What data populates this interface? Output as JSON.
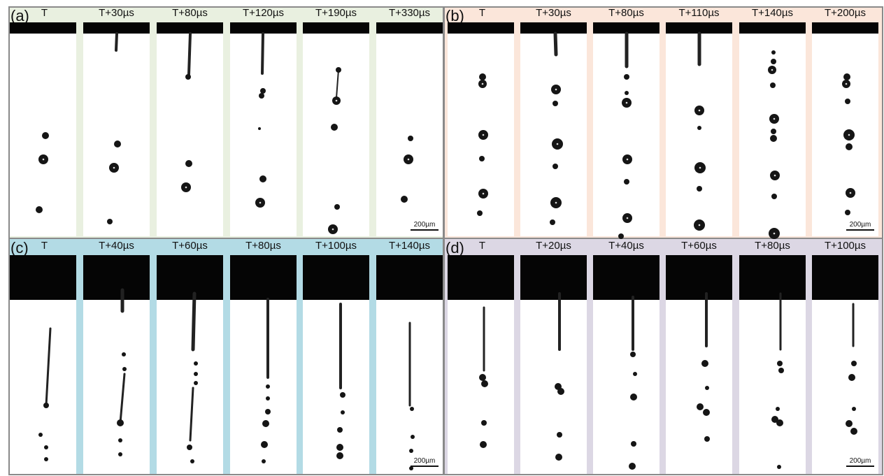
{
  "panels": [
    {
      "label": "(a)",
      "color": "#e9f0e0",
      "frames": [
        "T",
        "T+30µs",
        "T+80µs",
        "T+120µs",
        "T+190µs",
        "T+330µs"
      ],
      "scale_bar": "200µm"
    },
    {
      "label": "(b)",
      "color": "#fbe6da",
      "frames": [
        "T",
        "T+30µs",
        "T+80µs",
        "T+110µs",
        "T+140µs",
        "T+200µs"
      ],
      "scale_bar": "200µm"
    },
    {
      "label": "(c)",
      "color": "#b3dbe5",
      "frames": [
        "T",
        "T+40µs",
        "T+60µs",
        "T+80µs",
        "T+100µs",
        "T+140µs"
      ],
      "scale_bar": "200µm"
    },
    {
      "label": "(d)",
      "color": "#dcd7e4",
      "frames": [
        "T",
        "T+20µs",
        "T+40µs",
        "T+60µs",
        "T+80µs",
        "T+100µs"
      ],
      "scale_bar": "200µm"
    }
  ]
}
